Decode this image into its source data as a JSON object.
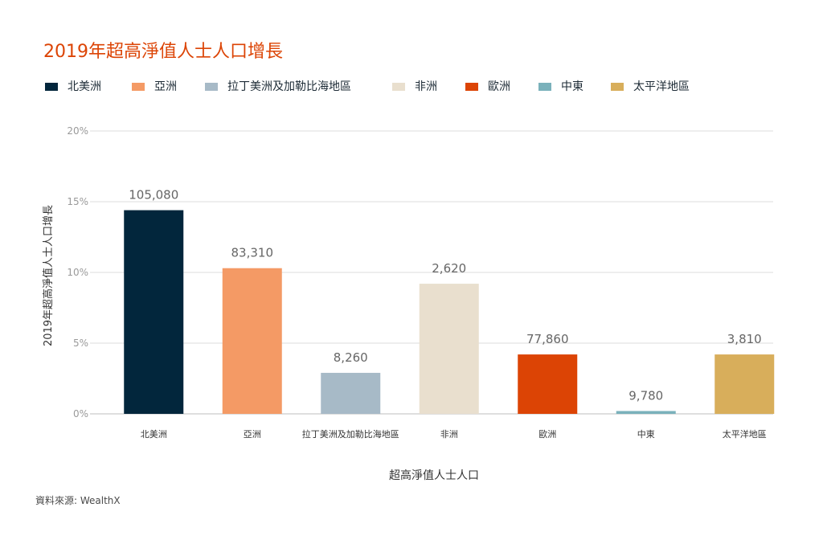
{
  "title": "2019年超高淨值人士人口增長",
  "source": "資料來源: WealthX",
  "chart_data": {
    "type": "bar",
    "title": "2019年超高淨值人士人口增長",
    "xlabel": "超高淨值人士人口",
    "ylabel": "2019年超高淨值人士人口增長",
    "ylim": [
      0,
      20
    ],
    "yticks": [
      0,
      5,
      10,
      15,
      20
    ],
    "ytick_labels": [
      "0%",
      "5%",
      "10%",
      "15%",
      "20%"
    ],
    "grid": true,
    "legend_position": "top",
    "categories": [
      "北美洲",
      "亞洲",
      "拉丁美洲及加勒比海地區",
      "非洲",
      "歐洲",
      "中東",
      "太平洋地區"
    ],
    "values": [
      14.4,
      10.3,
      2.9,
      9.2,
      4.2,
      0.2,
      4.2
    ],
    "data_labels": [
      "105,080",
      "83,310",
      "8,260",
      "2,620",
      "77,860",
      "9,780",
      "3,810"
    ],
    "colors": [
      "#02263c",
      "#f49a65",
      "#a7bac7",
      "#e9dfce",
      "#dc4405",
      "#7ab1bb",
      "#d8ae5b"
    ]
  }
}
